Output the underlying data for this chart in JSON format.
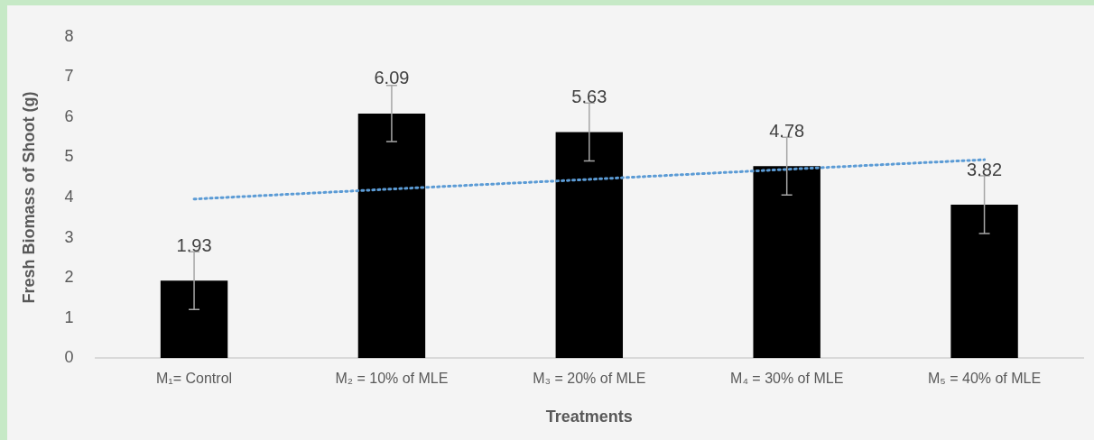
{
  "chart_data": {
    "type": "bar",
    "xlabel": "Treatments",
    "ylabel": "Fresh Biomass of Shoot (g)",
    "categories": [
      "M₁= Control",
      "M₂ = 10% of MLE",
      "M₃ = 20% of MLE",
      "M₄ = 30% of MLE",
      "M₅ = 40% of MLE"
    ],
    "series": [
      {
        "color": "#000000",
        "values": [
          1.93,
          6.09,
          5.63,
          4.78,
          3.82
        ],
        "value_labels": [
          "1.93",
          "6.09",
          "5.63",
          "4.78",
          "3.82"
        ],
        "errors": [
          0.72,
          0.7,
          0.72,
          0.72,
          0.72
        ]
      },
      {
        "type": "line",
        "color": "#5b9bd5",
        "line_style": "dotted",
        "marker": "none",
        "values": [
          3.96,
          4.21,
          4.45,
          4.7,
          4.94
        ]
      }
    ],
    "ylim": [
      0,
      8
    ],
    "yticks": [
      0,
      1,
      2,
      3,
      4,
      5,
      6,
      7,
      8
    ],
    "grid": false,
    "legend": false
  }
}
